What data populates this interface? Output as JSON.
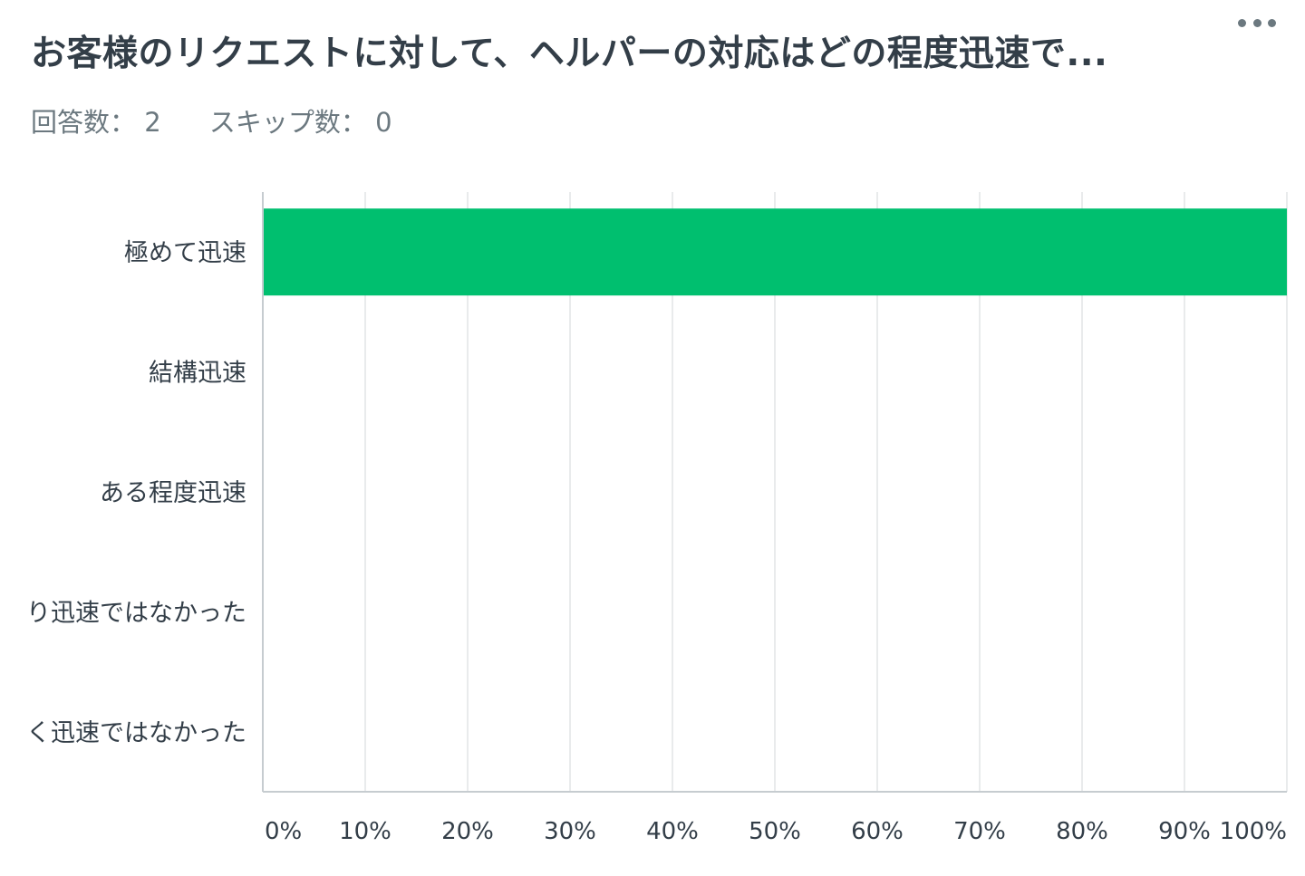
{
  "question": {
    "title": "お客様のリクエストに対して、ヘルパーの対応はどの程度迅速で...",
    "more_icon": "more-horizontal-icon"
  },
  "stats": {
    "answered_label": "回答数：",
    "answered_value": "2",
    "skipped_label": "スキップ数：",
    "skipped_value": "0"
  },
  "colors": {
    "bar": "#00bf6f",
    "grid": "#e9ebec",
    "axis": "#c6ccd0",
    "text": "#333e48",
    "muted": "#6b787f"
  },
  "chart_data": {
    "type": "bar",
    "orientation": "horizontal",
    "categories": [
      "極めて迅速",
      "結構迅速",
      "ある程度迅速",
      "り迅速ではなかった",
      "く迅速ではなかった"
    ],
    "values": [
      100,
      0,
      0,
      0,
      0
    ],
    "x_ticks": [
      "0%",
      "10%",
      "20%",
      "30%",
      "40%",
      "50%",
      "60%",
      "70%",
      "80%",
      "90%",
      "100%"
    ],
    "xlim": [
      0,
      100
    ],
    "grid": true,
    "legend": "none"
  }
}
